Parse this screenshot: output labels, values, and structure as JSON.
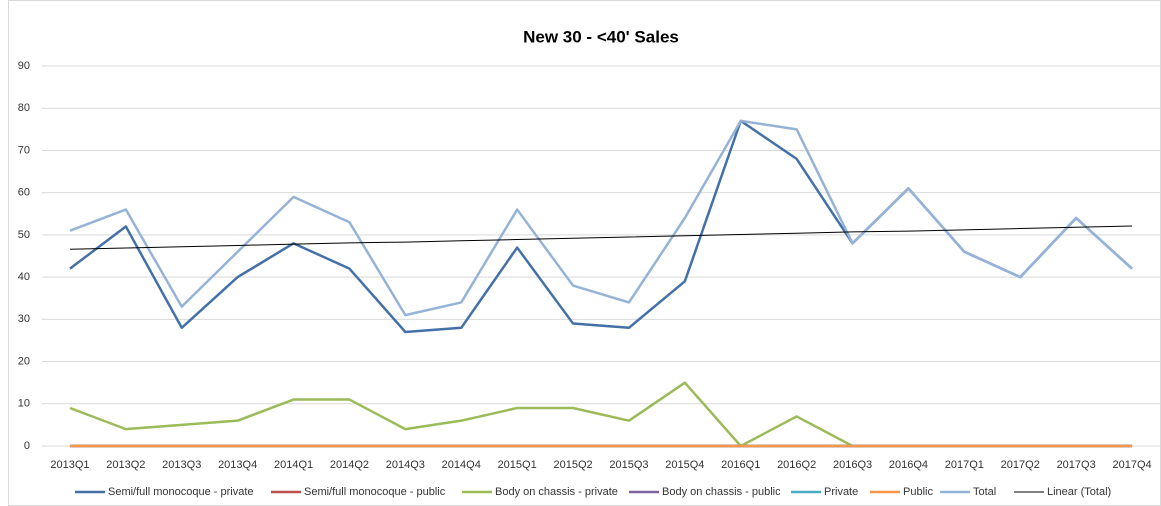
{
  "chart_data": {
    "type": "line",
    "title": "New 30 - <40' Sales",
    "categories": [
      "2013Q1",
      "2013Q2",
      "2013Q3",
      "2013Q4",
      "2014Q1",
      "2014Q2",
      "2014Q3",
      "2014Q4",
      "2015Q1",
      "2015Q2",
      "2015Q3",
      "2015Q4",
      "2016Q1",
      "2016Q2",
      "2016Q3",
      "2016Q4",
      "2017Q1",
      "2017Q2",
      "2017Q3",
      "2017Q4"
    ],
    "series": [
      {
        "name": "Semi/full monocoque - private",
        "color": "#4470a8",
        "values": [
          42,
          52,
          28,
          40,
          48,
          42,
          27,
          28,
          47,
          29,
          28,
          39,
          77,
          68,
          48,
          61,
          46,
          40,
          54,
          42
        ]
      },
      {
        "name": "Semi/full monocoque - public",
        "color": "#c0504d",
        "values": [
          0,
          0,
          0,
          0,
          0,
          0,
          0,
          0,
          0,
          0,
          0,
          0,
          0,
          0,
          0,
          0,
          0,
          0,
          0,
          0
        ]
      },
      {
        "name": "Body on chassis - private",
        "color": "#9bbb59",
        "values": [
          9,
          4,
          5,
          6,
          11,
          11,
          4,
          6,
          9,
          9,
          6,
          15,
          0,
          7,
          0,
          null,
          null,
          null,
          null,
          null
        ]
      },
      {
        "name": "Body on chassis - public",
        "color": "#8064a2",
        "values": [
          0,
          0,
          0,
          0,
          0,
          0,
          0,
          0,
          0,
          0,
          0,
          0,
          0,
          0,
          0,
          0,
          0,
          0,
          0,
          0
        ]
      },
      {
        "name": "Private",
        "color": "#4bacc6",
        "values": [
          0,
          0,
          0,
          0,
          0,
          0,
          0,
          0,
          0,
          0,
          0,
          0,
          0,
          0,
          0,
          0,
          0,
          0,
          0,
          0
        ]
      },
      {
        "name": "Public",
        "color": "#f79646",
        "values": [
          0,
          0,
          0,
          0,
          0,
          0,
          0,
          0,
          0,
          0,
          0,
          0,
          0,
          0,
          0,
          0,
          0,
          0,
          0,
          0
        ]
      },
      {
        "name": "Total",
        "color": "#95b3d7",
        "values": [
          51,
          56,
          33,
          46,
          59,
          53,
          31,
          34,
          56,
          38,
          34,
          54,
          77,
          75,
          48,
          61,
          46,
          40,
          54,
          42
        ]
      },
      {
        "name": "Linear (Total)",
        "color": "#000000",
        "values": [
          46.6,
          46.9,
          47.2,
          47.5,
          47.8,
          48.1,
          48.3,
          48.6,
          48.9,
          49.2,
          49.5,
          49.8,
          50.1,
          50.4,
          50.7,
          50.9,
          51.2,
          51.5,
          51.8,
          52.1
        ]
      }
    ],
    "ylim": [
      0,
      90
    ],
    "yticks": [
      0,
      10,
      20,
      30,
      40,
      50,
      60,
      70,
      80,
      90
    ],
    "grid": true,
    "legend": "bottom"
  }
}
